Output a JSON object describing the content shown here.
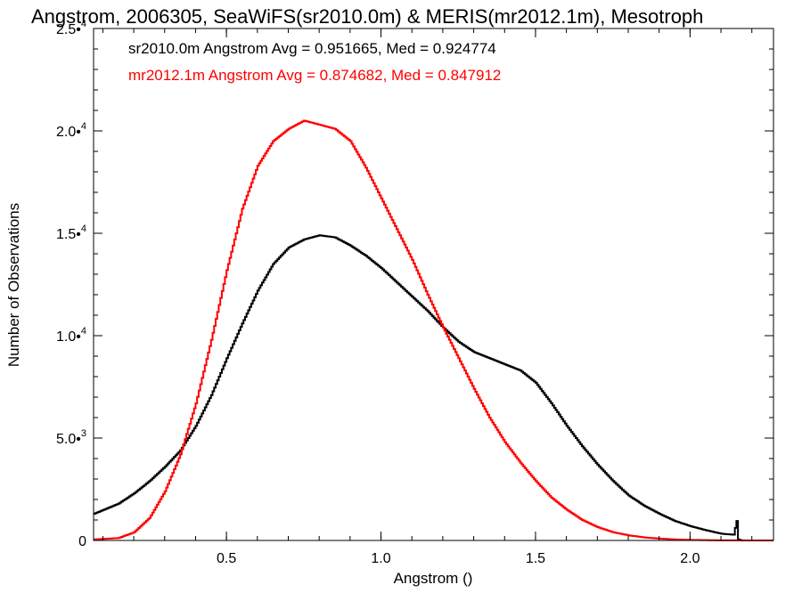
{
  "chart_data": {
    "type": "histogram-step",
    "title": "Angstrom, 2006305, SeaWiFS(sr2010.0m) & MERIS(mr2012.1m), Mesotroph",
    "xlabel": "Angstrom ()",
    "ylabel": "Number of Observations",
    "xlim": [
      0.07,
      2.27
    ],
    "ylim": [
      0,
      25000
    ],
    "x_ticks": [
      {
        "value": 0.5,
        "label": "0.5"
      },
      {
        "value": 1.0,
        "label": "1.0"
      },
      {
        "value": 1.5,
        "label": "1.5"
      },
      {
        "value": 2.0,
        "label": "2.0"
      }
    ],
    "y_ticks": [
      {
        "value": 0,
        "mant": "0",
        "exp": ""
      },
      {
        "value": 5000,
        "mant": "5.0•",
        "exp": "3"
      },
      {
        "value": 10000,
        "mant": "1.0•",
        "exp": "4"
      },
      {
        "value": 15000,
        "mant": "1.5•",
        "exp": "4"
      },
      {
        "value": 20000,
        "mant": "2.0•",
        "exp": "4"
      },
      {
        "value": 25000,
        "mant": "2.5•",
        "exp": "4"
      }
    ],
    "grid": false,
    "legend_position": "top-left",
    "series": [
      {
        "name": "sr2010.0m",
        "legend_text": "sr2010.0m Angstrom Avg = 0.951665, Med = 0.924774",
        "color": "#000000",
        "points": [
          [
            0.07,
            1300
          ],
          [
            0.15,
            1800
          ],
          [
            0.2,
            2300
          ],
          [
            0.25,
            2900
          ],
          [
            0.3,
            3600
          ],
          [
            0.35,
            4400
          ],
          [
            0.4,
            5600
          ],
          [
            0.45,
            7100
          ],
          [
            0.5,
            8900
          ],
          [
            0.55,
            10600
          ],
          [
            0.6,
            12200
          ],
          [
            0.65,
            13500
          ],
          [
            0.7,
            14300
          ],
          [
            0.75,
            14700
          ],
          [
            0.8,
            14900
          ],
          [
            0.85,
            14800
          ],
          [
            0.9,
            14400
          ],
          [
            0.95,
            13900
          ],
          [
            1.0,
            13300
          ],
          [
            1.05,
            12600
          ],
          [
            1.1,
            11900
          ],
          [
            1.15,
            11200
          ],
          [
            1.2,
            10400
          ],
          [
            1.25,
            9700
          ],
          [
            1.3,
            9200
          ],
          [
            1.35,
            8900
          ],
          [
            1.4,
            8600
          ],
          [
            1.45,
            8300
          ],
          [
            1.5,
            7700
          ],
          [
            1.55,
            6700
          ],
          [
            1.6,
            5600
          ],
          [
            1.65,
            4600
          ],
          [
            1.7,
            3700
          ],
          [
            1.75,
            2900
          ],
          [
            1.8,
            2200
          ],
          [
            1.85,
            1700
          ],
          [
            1.9,
            1300
          ],
          [
            1.95,
            950
          ],
          [
            2.0,
            700
          ],
          [
            2.05,
            500
          ],
          [
            2.1,
            330
          ],
          [
            2.14,
            280
          ],
          [
            2.15,
            950
          ],
          [
            2.155,
            50
          ],
          [
            2.165,
            0
          ],
          [
            2.27,
            0
          ]
        ]
      },
      {
        "name": "mr2012.1m",
        "legend_text": "mr2012.1m Angstrom Avg = 0.874682, Med = 0.847912",
        "color": "#ff0000",
        "points": [
          [
            0.07,
            50
          ],
          [
            0.15,
            120
          ],
          [
            0.2,
            400
          ],
          [
            0.25,
            1100
          ],
          [
            0.3,
            2400
          ],
          [
            0.35,
            4200
          ],
          [
            0.4,
            6700
          ],
          [
            0.45,
            9800
          ],
          [
            0.5,
            13200
          ],
          [
            0.55,
            16200
          ],
          [
            0.6,
            18300
          ],
          [
            0.65,
            19500
          ],
          [
            0.7,
            20100
          ],
          [
            0.75,
            20500
          ],
          [
            0.8,
            20300
          ],
          [
            0.85,
            20100
          ],
          [
            0.9,
            19500
          ],
          [
            0.95,
            18200
          ],
          [
            1.0,
            16700
          ],
          [
            1.05,
            15200
          ],
          [
            1.1,
            13700
          ],
          [
            1.15,
            12000
          ],
          [
            1.2,
            10400
          ],
          [
            1.25,
            8900
          ],
          [
            1.3,
            7400
          ],
          [
            1.35,
            6000
          ],
          [
            1.4,
            4800
          ],
          [
            1.45,
            3800
          ],
          [
            1.5,
            2900
          ],
          [
            1.55,
            2100
          ],
          [
            1.6,
            1500
          ],
          [
            1.65,
            1000
          ],
          [
            1.7,
            650
          ],
          [
            1.75,
            400
          ],
          [
            1.8,
            250
          ],
          [
            1.85,
            150
          ],
          [
            1.9,
            90
          ],
          [
            1.95,
            50
          ],
          [
            2.0,
            25
          ],
          [
            2.1,
            5
          ],
          [
            2.27,
            0
          ]
        ]
      }
    ]
  }
}
